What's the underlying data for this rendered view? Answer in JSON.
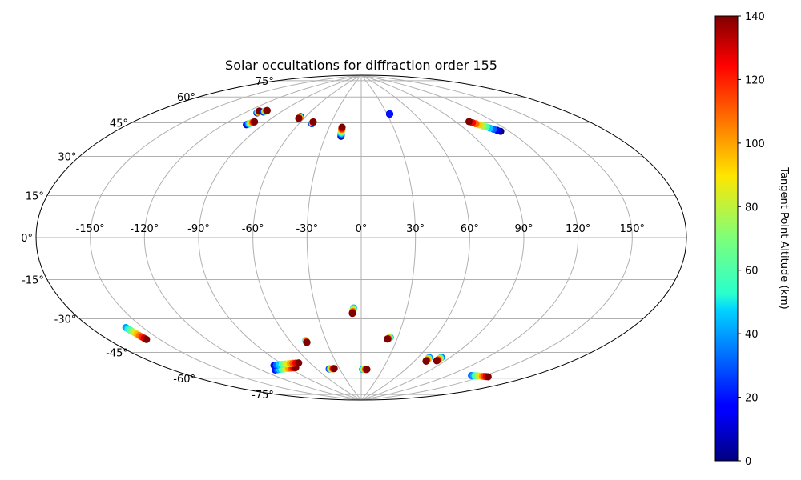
{
  "chart_data": {
    "type": "scatter",
    "projection": "aitoff",
    "title": "Solar occultations for diffraction order 155",
    "grid": true,
    "longitude_ticks": [
      "-150°",
      "-120°",
      "-90°",
      "-60°",
      "-30°",
      "0°",
      "30°",
      "60°",
      "90°",
      "120°",
      "150°"
    ],
    "longitude_tick_values": [
      -150,
      -120,
      -90,
      -60,
      -30,
      0,
      30,
      60,
      90,
      120,
      150
    ],
    "latitude_ticks": [
      "-75°",
      "-60°",
      "-45°",
      "-30°",
      "-15°",
      "0°",
      "15°",
      "30°",
      "45°",
      "60°",
      "75°"
    ],
    "latitude_tick_values": [
      -75,
      -60,
      -45,
      -30,
      -15,
      0,
      15,
      30,
      45,
      60,
      75
    ],
    "colorbar": {
      "label": "Tangent Point Altitude (km)",
      "range": [
        0,
        140
      ],
      "ticks": [
        "0",
        "20",
        "40",
        "60",
        "80",
        "100",
        "120",
        "140"
      ],
      "tick_values": [
        0,
        20,
        40,
        60,
        80,
        100,
        120,
        140
      ],
      "colormap": "jet"
    },
    "tracks": [
      {
        "start": [
          -110,
          63
        ],
        "end": [
          -111,
          64
        ],
        "alt_start": 0,
        "alt_end": 140
      },
      {
        "start": [
          -106,
          64
        ],
        "end": [
          -105,
          65
        ],
        "alt_start": 0,
        "alt_end": 140
      },
      {
        "start": [
          -103,
          57
        ],
        "end": [
          -100,
          59
        ],
        "alt_start": 0,
        "alt_end": 140
      },
      {
        "start": [
          -65,
          65
        ],
        "end": [
          -65,
          64
        ],
        "alt_start": 0,
        "alt_end": 140
      },
      {
        "start": [
          -48,
          62
        ],
        "end": [
          -48,
          63
        ],
        "alt_start": 0,
        "alt_end": 140
      },
      {
        "start": [
          -17,
          56
        ],
        "end": [
          -18,
          61
        ],
        "alt_start": 0,
        "alt_end": 140
      },
      {
        "start": [
          33,
          68
        ],
        "end": [
          33,
          68
        ],
        "alt_start": 0,
        "alt_end": 20
      },
      {
        "start": [
          114,
          52
        ],
        "end": [
          101,
          59
        ],
        "alt_start": 0,
        "alt_end": 140
      },
      {
        "start": [
          -160,
          -37
        ],
        "end": [
          -158,
          -43
        ],
        "alt_start": 40,
        "alt_end": 140
      },
      {
        "start": [
          -5,
          -39
        ],
        "end": [
          -6,
          -42
        ],
        "alt_start": 40,
        "alt_end": 140
      },
      {
        "start": [
          -47,
          -56
        ],
        "end": [
          -47,
          -57
        ],
        "alt_start": 40,
        "alt_end": 140
      },
      {
        "start": [
          24,
          -55
        ],
        "end": [
          22,
          -56
        ],
        "alt_start": 40,
        "alt_end": 140
      },
      {
        "start": [
          -107,
          -68
        ],
        "end": [
          -82,
          -69
        ],
        "alt_start": 20,
        "alt_end": 140
      },
      {
        "start": [
          -100,
          -66
        ],
        "end": [
          -72,
          -67
        ],
        "alt_start": 20,
        "alt_end": 140
      },
      {
        "start": [
          -44,
          -72
        ],
        "end": [
          -37,
          -72
        ],
        "alt_start": 20,
        "alt_end": 140
      },
      {
        "start": [
          2,
          -73
        ],
        "end": [
          8,
          -73
        ],
        "alt_start": 30,
        "alt_end": 140
      },
      {
        "start": [
          71,
          -64
        ],
        "end": [
          72,
          -66
        ],
        "alt_start": 30,
        "alt_end": 140
      },
      {
        "start": [
          82,
          -63
        ],
        "end": [
          82,
          -65
        ],
        "alt_start": 30,
        "alt_end": 140
      },
      {
        "start": [
          140,
          -67
        ],
        "end": [
          155,
          -65
        ],
        "alt_start": 30,
        "alt_end": 140
      }
    ]
  }
}
